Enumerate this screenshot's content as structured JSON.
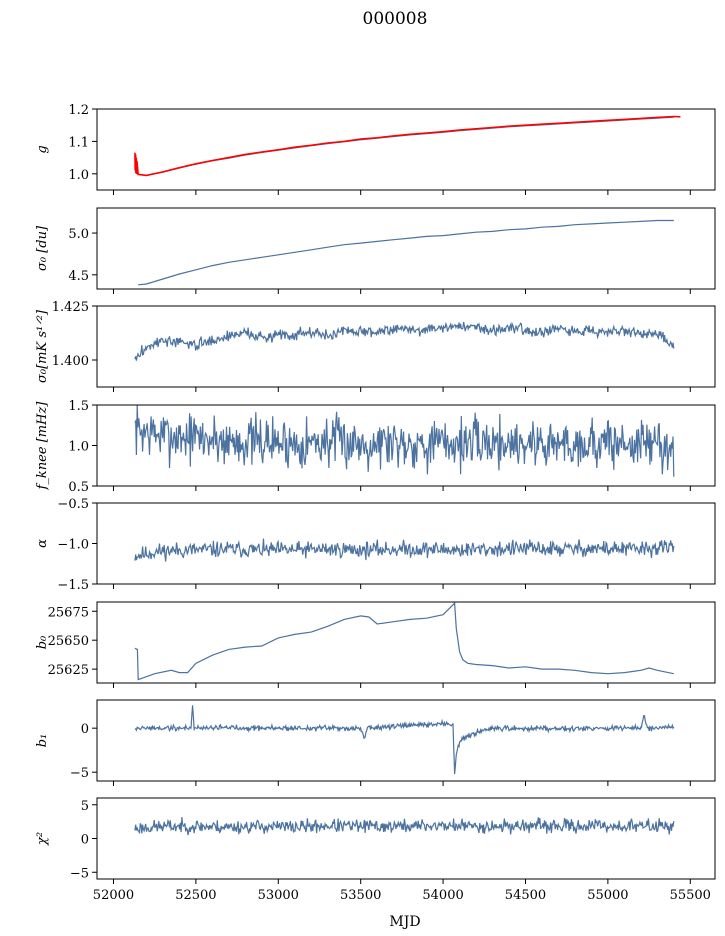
{
  "figure": {
    "title": "000008",
    "xlabel": "MJD"
  },
  "colors": {
    "series": "#4c72a0",
    "fit": "#ff0000",
    "axes": "#000000"
  },
  "chart_data": [
    {
      "type": "line",
      "ylabel": "g",
      "ylim": [
        0.95,
        1.2
      ],
      "yticks": [
        1.0,
        1.1,
        1.2
      ],
      "ytick_labels": [
        "1.0",
        "1.1",
        "1.2"
      ],
      "xlim": [
        51900,
        55650
      ],
      "series": [
        {
          "color": "#4c72a0",
          "x": [
            52130,
            52150,
            52200,
            52300,
            52400,
            52500,
            52600,
            52700,
            52800,
            52900,
            53000,
            53100,
            53200,
            53300,
            53400,
            53500,
            53600,
            53700,
            53800,
            53900,
            54000,
            54100,
            54200,
            54300,
            54400,
            54500,
            54600,
            54700,
            54800,
            54900,
            55000,
            55100,
            55200,
            55300,
            55400
          ],
          "y": [
            1.005,
            0.998,
            0.995,
            1.005,
            1.018,
            1.03,
            1.04,
            1.048,
            1.058,
            1.066,
            1.073,
            1.08,
            1.087,
            1.093,
            1.099,
            1.105,
            1.11,
            1.115,
            1.12,
            1.124,
            1.128,
            1.133,
            1.137,
            1.141,
            1.145,
            1.148,
            1.151,
            1.154,
            1.157,
            1.16,
            1.163,
            1.166,
            1.169,
            1.172,
            1.175
          ]
        },
        {
          "color": "#ff0000",
          "x": [
            52130,
            52132,
            52134,
            52136,
            52138,
            52140,
            52142,
            52150,
            52200,
            52300,
            52400,
            52500,
            52600,
            52700,
            52800,
            52900,
            53000,
            53100,
            53200,
            53300,
            53400,
            53500,
            53600,
            53700,
            53800,
            53900,
            54000,
            54100,
            54200,
            54300,
            54400,
            54500,
            54600,
            54700,
            54800,
            54900,
            55000,
            55100,
            55200,
            55300,
            55400,
            55440
          ],
          "y": [
            1.065,
            1.01,
            1.06,
            1.005,
            1.05,
            1.0,
            1.04,
            0.998,
            0.995,
            1.006,
            1.019,
            1.031,
            1.041,
            1.05,
            1.06,
            1.067,
            1.074,
            1.082,
            1.088,
            1.095,
            1.1,
            1.107,
            1.111,
            1.117,
            1.122,
            1.126,
            1.13,
            1.135,
            1.139,
            1.143,
            1.147,
            1.15,
            1.153,
            1.156,
            1.159,
            1.162,
            1.165,
            1.168,
            1.171,
            1.174,
            1.177,
            1.176
          ]
        }
      ]
    },
    {
      "type": "line",
      "ylabel": "σ₀ [du]",
      "ylim": [
        4.33,
        5.3
      ],
      "yticks": [
        4.5,
        5.0
      ],
      "ytick_labels": [
        "4.5",
        "5.0"
      ],
      "xlim": [
        51900,
        55650
      ],
      "series": [
        {
          "color": "#4c72a0",
          "x": [
            52150,
            52200,
            52300,
            52400,
            52500,
            52600,
            52700,
            52800,
            52900,
            53000,
            53100,
            53200,
            53300,
            53400,
            53500,
            53600,
            53700,
            53800,
            53900,
            54000,
            54100,
            54200,
            54300,
            54400,
            54500,
            54600,
            54700,
            54800,
            54900,
            55000,
            55100,
            55200,
            55300,
            55400
          ],
          "y": [
            4.38,
            4.39,
            4.45,
            4.51,
            4.56,
            4.61,
            4.65,
            4.68,
            4.71,
            4.74,
            4.77,
            4.8,
            4.83,
            4.86,
            4.88,
            4.9,
            4.92,
            4.94,
            4.96,
            4.97,
            4.99,
            5.01,
            5.02,
            5.04,
            5.05,
            5.07,
            5.08,
            5.1,
            5.11,
            5.12,
            5.13,
            5.14,
            5.15,
            5.15
          ]
        }
      ]
    },
    {
      "type": "line",
      "ylabel": "σ₀[mK s¹ᐟ²]",
      "ylim": [
        1.3875,
        1.425
      ],
      "yticks": [
        1.4,
        1.425
      ],
      "ytick_labels": [
        "1.400",
        "1.425"
      ],
      "xlim": [
        51900,
        55650
      ],
      "noise": {
        "seed": 3,
        "amplitude": 0.0018
      },
      "series": [
        {
          "color": "#4c72a0",
          "x": [
            52130,
            52200,
            52300,
            52400,
            52500,
            52600,
            52700,
            52800,
            52900,
            53000,
            53100,
            53200,
            53300,
            53400,
            53500,
            53600,
            53700,
            53800,
            53900,
            54000,
            54100,
            54200,
            54300,
            54400,
            54500,
            54600,
            54700,
            54800,
            54900,
            55000,
            55100,
            55200,
            55300,
            55400
          ],
          "y": [
            1.4,
            1.406,
            1.409,
            1.408,
            1.407,
            1.409,
            1.411,
            1.413,
            1.41,
            1.412,
            1.412,
            1.413,
            1.411,
            1.414,
            1.413,
            1.413,
            1.415,
            1.414,
            1.414,
            1.415,
            1.416,
            1.415,
            1.414,
            1.415,
            1.414,
            1.413,
            1.414,
            1.413,
            1.414,
            1.413,
            1.414,
            1.412,
            1.412,
            1.406
          ]
        }
      ]
    },
    {
      "type": "line",
      "ylabel": "f_knee [mHz]",
      "ylim": [
        0.5,
        1.5
      ],
      "yticks": [
        0.5,
        1.0,
        1.5
      ],
      "ytick_labels": [
        "0.5",
        "1.0",
        "1.5"
      ],
      "xlim": [
        51900,
        55650
      ],
      "noise": {
        "seed": 7,
        "amplitude": 0.22
      },
      "series": [
        {
          "color": "#4c72a0",
          "x": [
            52130,
            52300,
            52500,
            52700,
            52900,
            53100,
            53300,
            53500,
            53700,
            53900,
            54100,
            54300,
            54500,
            54700,
            54900,
            55100,
            55300,
            55400
          ],
          "y": [
            1.2,
            1.12,
            1.1,
            1.05,
            1.05,
            1.03,
            1.05,
            1.03,
            1.05,
            1.02,
            1.03,
            1.04,
            1.03,
            1.02,
            1.03,
            1.02,
            1.03,
            0.95
          ]
        }
      ]
    },
    {
      "type": "line",
      "ylabel": "α",
      "ylim": [
        -1.5,
        -0.5
      ],
      "yticks": [
        -1.5,
        -1.0,
        -0.5
      ],
      "ytick_labels": [
        "−1.5",
        "−1.0",
        "−0.5"
      ],
      "xlim": [
        51900,
        55650
      ],
      "noise": {
        "seed": 11,
        "amplitude": 0.07
      },
      "series": [
        {
          "color": "#4c72a0",
          "x": [
            52130,
            52300,
            52500,
            52700,
            52900,
            53100,
            53300,
            53500,
            53700,
            53900,
            54100,
            54300,
            54500,
            54700,
            54900,
            55100,
            55300,
            55400
          ],
          "y": [
            -1.15,
            -1.09,
            -1.08,
            -1.07,
            -1.08,
            -1.08,
            -1.07,
            -1.08,
            -1.07,
            -1.07,
            -1.08,
            -1.07,
            -1.06,
            -1.07,
            -1.06,
            -1.07,
            -1.06,
            -1.04
          ]
        }
      ]
    },
    {
      "type": "line",
      "ylabel": "b₀",
      "ylim": [
        25613,
        25683
      ],
      "yticks": [
        25625,
        25650,
        25675
      ],
      "ytick_labels": [
        "25625",
        "25650",
        "25675"
      ],
      "xlim": [
        51900,
        55650
      ],
      "series": [
        {
          "color": "#4c72a0",
          "x": [
            52130,
            52145,
            52150,
            52170,
            52250,
            52350,
            52400,
            52450,
            52500,
            52600,
            52700,
            52800,
            52900,
            53000,
            53100,
            53200,
            53300,
            53400,
            53500,
            53550,
            53600,
            53700,
            53800,
            53900,
            54000,
            54070,
            54080,
            54100,
            54120,
            54150,
            54200,
            54300,
            54400,
            54500,
            54600,
            54700,
            54800,
            54900,
            55000,
            55100,
            55200,
            55250,
            55300,
            55400
          ],
          "y": [
            25643,
            25642,
            25616,
            25617,
            25621,
            25624,
            25622,
            25622,
            25630,
            25637,
            25642,
            25644,
            25645,
            25652,
            25655,
            25657,
            25662,
            25668,
            25671,
            25670,
            25664,
            25666,
            25668,
            25669,
            25672,
            25682,
            25660,
            25640,
            25633,
            25630,
            25629,
            25628,
            25626,
            25627,
            25625,
            25625,
            25624,
            25622,
            25621,
            25622,
            25624,
            25626,
            25624,
            25621
          ]
        }
      ]
    },
    {
      "type": "line",
      "ylabel": "b₁",
      "ylim": [
        -6,
        3.2
      ],
      "yticks": [
        -5,
        0
      ],
      "ytick_labels": [
        "−5",
        "0"
      ],
      "xlim": [
        51900,
        55650
      ],
      "noise": {
        "seed": 19,
        "amplitude": 0.22
      },
      "series": [
        {
          "color": "#4c72a0",
          "x": [
            52130,
            52400,
            52470,
            52480,
            52490,
            52600,
            53000,
            53500,
            53520,
            53540,
            54000,
            54060,
            54070,
            54080,
            54100,
            54200,
            54300,
            54600,
            55200,
            55220,
            55240,
            55400
          ],
          "y": [
            0.0,
            0.0,
            0.0,
            2.6,
            0.0,
            0.1,
            0.0,
            0.0,
            -1.2,
            0.0,
            0.5,
            0.5,
            -5.2,
            -3.0,
            -1.5,
            -0.5,
            -0.1,
            0.0,
            0.0,
            1.4,
            0.0,
            0.0
          ]
        }
      ]
    },
    {
      "type": "line",
      "ylabel": "χ²",
      "ylim": [
        -6,
        6
      ],
      "yticks": [
        -5,
        0,
        5
      ],
      "ytick_labels": [
        "−5",
        "0",
        "5"
      ],
      "xlim": [
        51900,
        55650
      ],
      "noise": {
        "seed": 23,
        "amplitude": 0.7
      },
      "series": [
        {
          "color": "#4c72a0",
          "x": [
            52130,
            52300,
            52500,
            52700,
            52900,
            53100,
            53300,
            53500,
            53700,
            53900,
            54100,
            54300,
            54500,
            54700,
            54900,
            55100,
            55300,
            55400
          ],
          "y": [
            1.5,
            1.8,
            1.8,
            1.7,
            1.8,
            1.7,
            1.9,
            1.8,
            1.8,
            1.9,
            1.9,
            1.8,
            1.9,
            1.8,
            1.9,
            1.8,
            1.9,
            1.9
          ]
        }
      ]
    }
  ],
  "x_axis": {
    "ticks": [
      52000,
      52500,
      53000,
      53500,
      54000,
      54500,
      55000,
      55500
    ],
    "tick_labels": [
      "52000",
      "52500",
      "53000",
      "53500",
      "54000",
      "54500",
      "55000",
      "55500"
    ]
  }
}
